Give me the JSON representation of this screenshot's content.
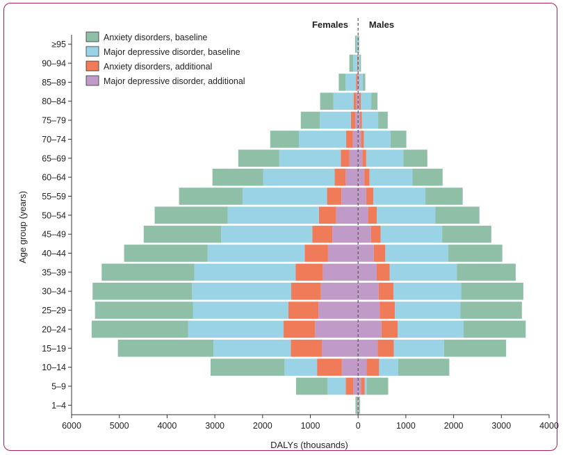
{
  "chart_data": {
    "type": "bar",
    "orientation": "horizontal-population-pyramid",
    "title": "",
    "side_labels": {
      "left": "Females",
      "right": "Males"
    },
    "xlabel": "DALYs (thousands)",
    "ylabel": "Age group (years)",
    "xlim": [
      -6000,
      4000
    ],
    "xticks": [
      -6000,
      -5000,
      -4000,
      -3000,
      -2000,
      -1000,
      0,
      1000,
      2000,
      3000,
      4000
    ],
    "xtick_labels": [
      "6000",
      "5000",
      "4000",
      "3000",
      "2000",
      "1000",
      "0",
      "1000",
      "2000",
      "3000",
      "4000"
    ],
    "categories": [
      "1–4",
      "5–9",
      "10–14",
      "15–19",
      "20–24",
      "25–29",
      "30–34",
      "35–39",
      "40–44",
      "45–49",
      "50–54",
      "55–59",
      "60–64",
      "65–69",
      "70–74",
      "75–79",
      "80–84",
      "85–89",
      "90–94",
      "≥95"
    ],
    "legend_position": "top-left",
    "stack_order": "from center outward: MDD additional, Anxiety additional, MDD baseline, Anxiety baseline",
    "series": [
      {
        "name": "Anxiety disorders, baseline",
        "color": "#8fbfa6",
        "females": [
          30,
          660,
          1550,
          2000,
          2020,
          2050,
          2080,
          1940,
          1750,
          1620,
          1530,
          1330,
          1060,
          860,
          600,
          400,
          280,
          140,
          80,
          30
        ],
        "males": [
          20,
          450,
          1070,
          1300,
          1300,
          1290,
          1300,
          1230,
          1130,
          1030,
          920,
          780,
          630,
          500,
          330,
          200,
          130,
          50,
          25,
          10
        ]
      },
      {
        "name": "Major depressive disorder, baseline",
        "color": "#9bd3e6",
        "females": [
          10,
          380,
          680,
          1620,
          2000,
          2000,
          2080,
          2120,
          2030,
          1910,
          1910,
          1770,
          1500,
          1290,
          990,
          650,
          420,
          220,
          85,
          25
        ],
        "males": [
          10,
          40,
          400,
          1050,
          1380,
          1370,
          1420,
          1410,
          1320,
          1290,
          1230,
          1090,
          900,
          780,
          560,
          340,
          220,
          80,
          25,
          10
        ]
      },
      {
        "name": "Anxiety disorders, additional",
        "color": "#ef7b58",
        "females": [
          10,
          160,
          520,
          650,
          660,
          630,
          620,
          570,
          490,
          420,
          360,
          300,
          230,
          180,
          140,
          90,
          60,
          25,
          10,
          5
        ],
        "males": [
          5,
          80,
          260,
          340,
          340,
          320,
          310,
          270,
          240,
          200,
          180,
          150,
          110,
          80,
          60,
          40,
          30,
          10,
          5,
          2
        ]
      },
      {
        "name": "Major depressive disorder, additional",
        "color": "#c09bc8",
        "females": [
          5,
          100,
          340,
          760,
          900,
          830,
          780,
          740,
          630,
          540,
          460,
          350,
          260,
          180,
          110,
          60,
          35,
          20,
          8,
          3
        ],
        "males": [
          5,
          60,
          180,
          410,
          490,
          450,
          430,
          390,
          330,
          270,
          210,
          170,
          130,
          90,
          60,
          40,
          25,
          10,
          5,
          2
        ]
      }
    ]
  }
}
